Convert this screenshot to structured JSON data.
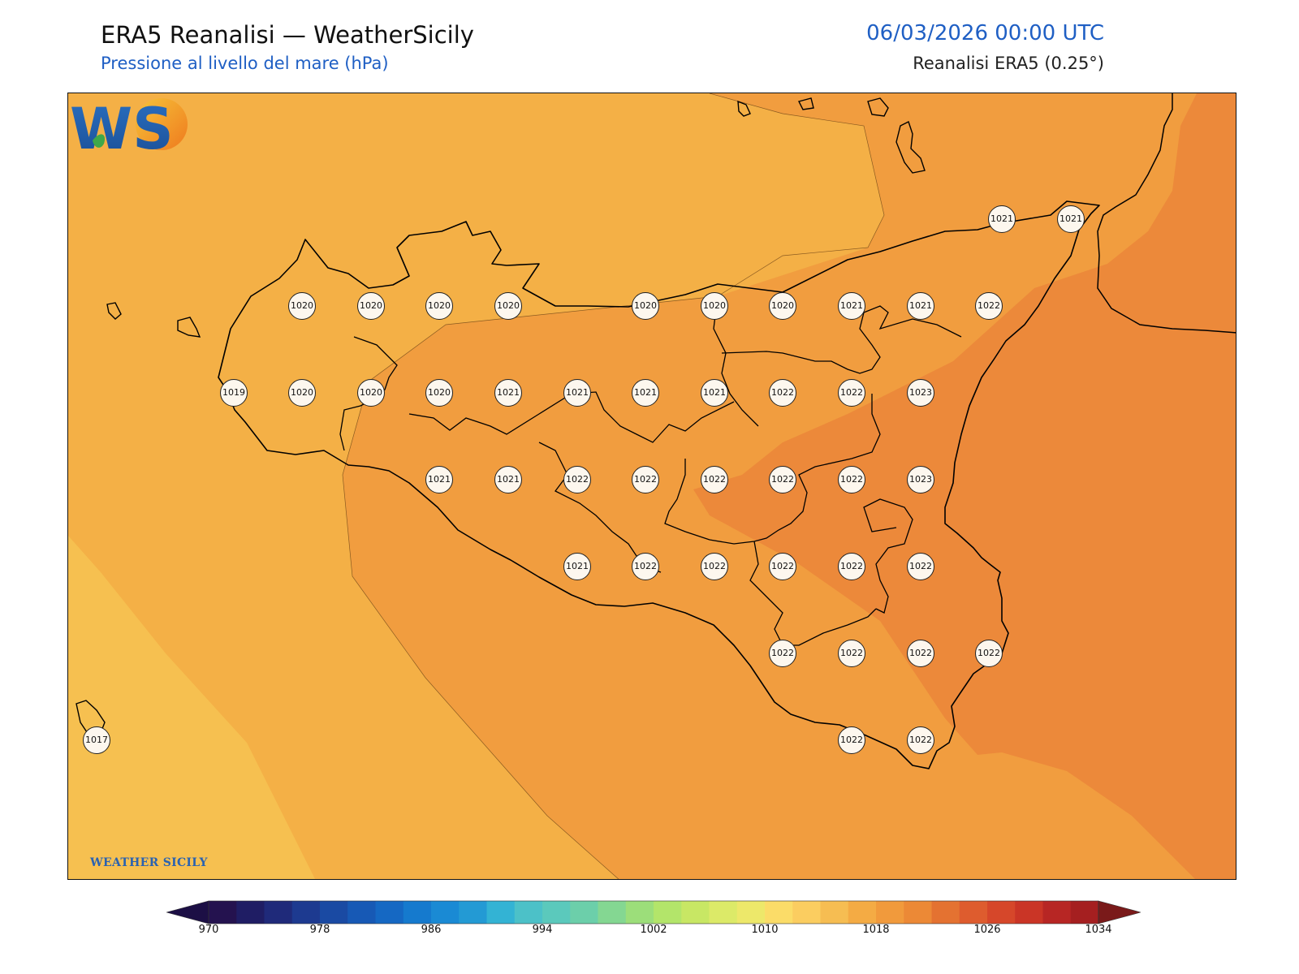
{
  "header": {
    "title": "ERA5 Reanalisi — WeatherSicily",
    "subtitle": "Pressione al livello del mare (hPa)",
    "datetime": "06/03/2026 00:00 UTC",
    "source": "Reanalisi ERA5 (0.25°)"
  },
  "logo": {
    "initials": "WS",
    "text": "WEATHER SICILY"
  },
  "stations": [
    {
      "value": "1021"
    },
    {
      "value": "1021"
    },
    {
      "value": "1020"
    },
    {
      "value": "1020"
    },
    {
      "value": "1020"
    },
    {
      "value": "1020"
    },
    {
      "value": "1020"
    },
    {
      "value": "1020"
    },
    {
      "value": "1020"
    },
    {
      "value": "1021"
    },
    {
      "value": "1021"
    },
    {
      "value": "1022"
    },
    {
      "value": "1019"
    },
    {
      "value": "1020"
    },
    {
      "value": "1020"
    },
    {
      "value": "1020"
    },
    {
      "value": "1021"
    },
    {
      "value": "1021"
    },
    {
      "value": "1021"
    },
    {
      "value": "1021"
    },
    {
      "value": "1022"
    },
    {
      "value": "1022"
    },
    {
      "value": "1023"
    },
    {
      "value": "1021"
    },
    {
      "value": "1021"
    },
    {
      "value": "1022"
    },
    {
      "value": "1022"
    },
    {
      "value": "1022"
    },
    {
      "value": "1022"
    },
    {
      "value": "1022"
    },
    {
      "value": "1023"
    },
    {
      "value": "1021"
    },
    {
      "value": "1022"
    },
    {
      "value": "1022"
    },
    {
      "value": "1022"
    },
    {
      "value": "1022"
    },
    {
      "value": "1022"
    },
    {
      "value": "1022"
    },
    {
      "value": "1022"
    },
    {
      "value": "1022"
    },
    {
      "value": "1022"
    },
    {
      "value": "1017"
    },
    {
      "value": "1022"
    },
    {
      "value": "1022"
    }
  ],
  "colorbar": {
    "min": 970,
    "max": 1034,
    "step": 2,
    "tick_labels": [
      "970",
      "978",
      "986",
      "994",
      "1002",
      "1010",
      "1018",
      "1026",
      "1034"
    ],
    "colors": [
      "#24124f",
      "#1f1d64",
      "#1f2a7a",
      "#1d3a90",
      "#1a4aa3",
      "#1759b5",
      "#1568c3",
      "#157ace",
      "#1a8ad4",
      "#239ad4",
      "#33b3d4",
      "#4cc1c8",
      "#5bc9bc",
      "#6ccfaa",
      "#84d792",
      "#9cde7a",
      "#b3e56a",
      "#c8e764",
      "#dcea68",
      "#ede86a",
      "#fbdc68",
      "#fbcd60",
      "#f6bd52",
      "#f4ab44",
      "#f19a3c",
      "#ec8936",
      "#e47231",
      "#de5c2e",
      "#d6472a",
      "#ca3526",
      "#b72624",
      "#a51f20"
    ],
    "under_color": "#1c0f45",
    "over_color": "#7a1a1a"
  }
}
